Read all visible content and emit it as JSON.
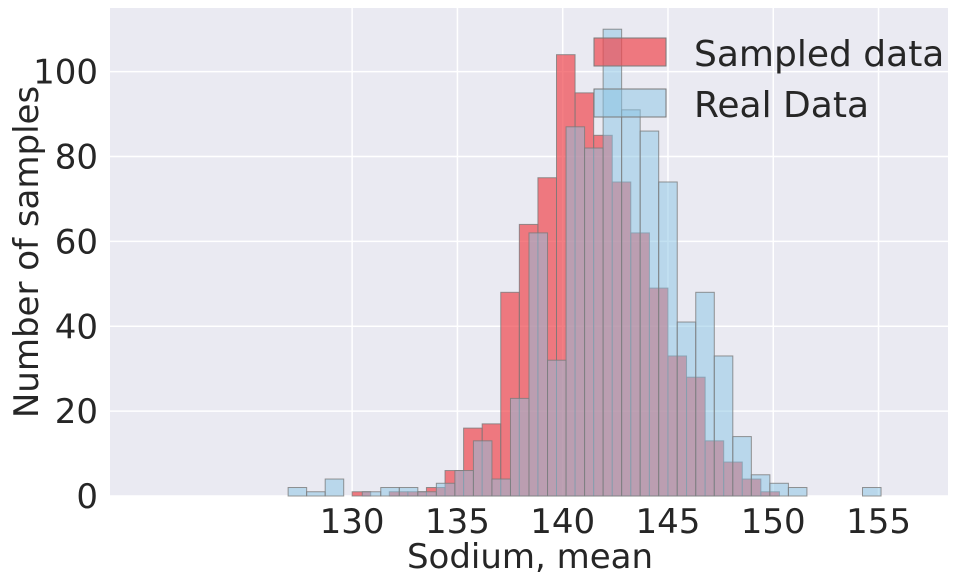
{
  "chart_data": {
    "type": "bar",
    "xlabel": "Sodium, mean",
    "ylabel": "Number of samples",
    "xlim": [
      118.5,
      158.3
    ],
    "ylim": [
      0,
      115
    ],
    "xticks": [
      130,
      135,
      140,
      145,
      150,
      155
    ],
    "yticks": [
      0,
      20,
      40,
      60,
      80,
      100
    ],
    "grid": true,
    "legend_position": "top-right",
    "colors": {
      "background": "#eaeaf2",
      "grid": "#ffffff",
      "sampled": "#f0474f",
      "real": "#87c3e4",
      "edge": "#7a7a7a"
    },
    "series": [
      {
        "name": "Sampled data",
        "bin_edges": [
          130.0,
          130.882,
          131.765,
          132.647,
          133.529,
          134.412,
          135.294,
          136.176,
          137.059,
          137.941,
          138.824,
          139.706,
          140.588,
          141.471,
          142.353,
          143.235,
          144.118,
          145.0,
          145.882,
          146.765,
          147.647,
          148.529,
          149.412,
          150.294
        ],
        "counts": [
          1,
          0,
          1,
          1,
          2,
          6,
          16,
          17,
          48,
          64,
          75,
          104,
          95,
          85,
          74,
          62,
          49,
          33,
          28,
          13,
          8,
          4,
          1,
          1
        ]
      },
      {
        "name": "Real Data",
        "bin_edges": [
          126.96,
          127.84,
          128.72,
          129.6,
          130.48,
          131.36,
          132.24,
          133.12,
          134.0,
          134.88,
          135.76,
          136.64,
          137.52,
          138.4,
          139.28,
          140.16,
          141.04,
          141.92,
          142.8,
          143.68,
          144.56,
          145.44,
          146.32,
          147.2,
          148.08,
          148.96,
          149.84,
          150.72,
          151.6,
          152.48,
          153.36,
          154.24,
          155.12,
          156.0,
          156.88
        ],
        "counts": [
          2,
          1,
          4,
          0,
          1,
          2,
          2,
          1,
          3,
          6,
          13,
          4,
          23,
          62,
          32,
          87,
          82,
          110,
          91,
          86,
          74,
          41,
          48,
          33,
          14,
          5,
          3,
          2,
          0,
          0,
          0,
          2,
          0,
          0,
          1
        ]
      }
    ]
  }
}
